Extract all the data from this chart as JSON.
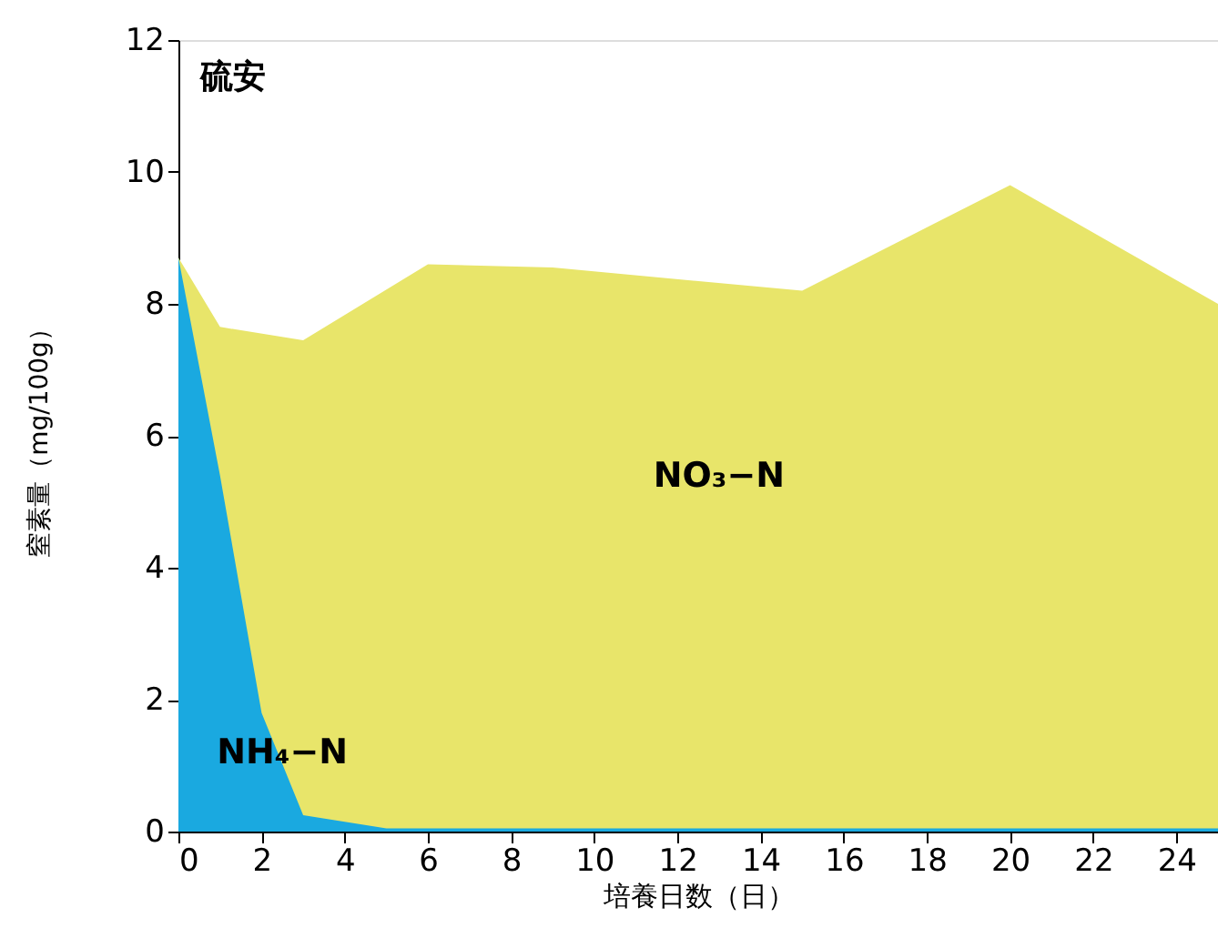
{
  "chart_data": {
    "type": "area",
    "title": "硫安",
    "xlabel": "培養日数（日）",
    "ylabel": "窒素量（mg/100g）",
    "xlim": [
      0,
      25
    ],
    "xticks": [
      0,
      2,
      4,
      6,
      8,
      10,
      12,
      14,
      16,
      18,
      20,
      22,
      24
    ],
    "ylim": [
      0,
      12
    ],
    "yticks": [
      0,
      2,
      4,
      6,
      8,
      10,
      12
    ],
    "grid": false,
    "legend": false,
    "series": [
      {
        "name": "NO₃−N",
        "color": "#e8e56a",
        "x": [
          0,
          1,
          3,
          6,
          9,
          15,
          20,
          25
        ],
        "values": [
          8.7,
          7.65,
          7.45,
          8.6,
          8.55,
          8.2,
          9.8,
          8.0
        ]
      },
      {
        "name": "NH₄−N",
        "color": "#1aa9e0",
        "x": [
          0,
          1,
          2,
          3,
          5,
          25
        ],
        "values": [
          8.7,
          5.4,
          1.8,
          0.25,
          0.05,
          0.05
        ]
      }
    ]
  }
}
